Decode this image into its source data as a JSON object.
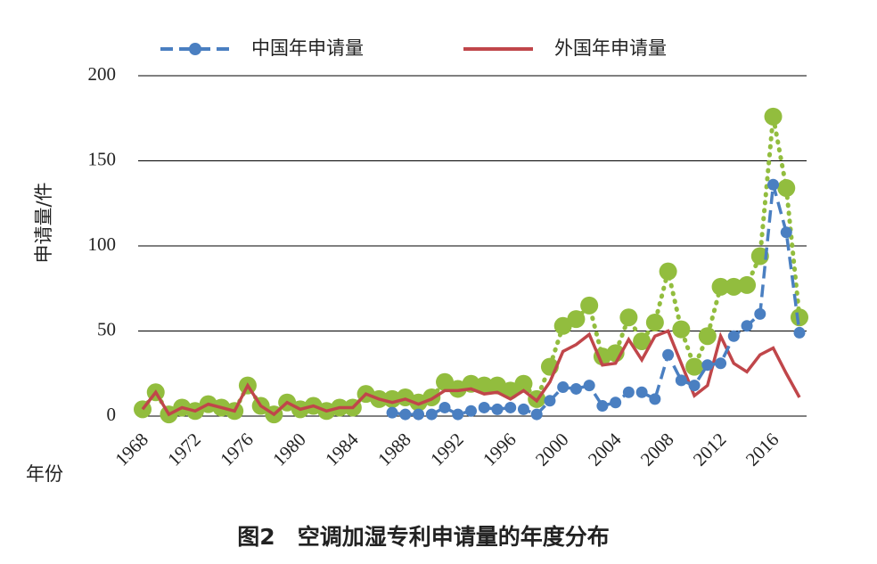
{
  "chart_data": {
    "type": "line",
    "y_label": "申请量/件",
    "x_label": "年份",
    "caption": "图2　空调加湿专利申请量的年度分布",
    "x": [
      1968,
      1969,
      1970,
      1971,
      1972,
      1973,
      1974,
      1975,
      1976,
      1977,
      1978,
      1979,
      1980,
      1981,
      1982,
      1983,
      1984,
      1985,
      1986,
      1987,
      1988,
      1989,
      1990,
      1991,
      1992,
      1993,
      1994,
      1995,
      1996,
      1997,
      1998,
      1999,
      2000,
      2001,
      2002,
      2003,
      2004,
      2005,
      2006,
      2007,
      2008,
      2009,
      2010,
      2011,
      2012,
      2013,
      2014,
      2015,
      2016,
      2017,
      2018
    ],
    "series": [
      {
        "name": "中国年申请量",
        "color": "#4a7fc1",
        "style": "dashed",
        "markers": true,
        "values": [
          null,
          null,
          null,
          null,
          null,
          null,
          null,
          null,
          null,
          null,
          null,
          null,
          null,
          null,
          null,
          null,
          null,
          null,
          null,
          2,
          1,
          1,
          1,
          5,
          1,
          3,
          5,
          4,
          5,
          4,
          1,
          9,
          17,
          16,
          18,
          6,
          8,
          14,
          14,
          10,
          36,
          21,
          18,
          30,
          31,
          47,
          53,
          60,
          136,
          108,
          49
        ]
      },
      {
        "name": "外国年申请量",
        "color": "#c0464a",
        "style": "solid",
        "markers": false,
        "values": [
          4,
          14,
          1,
          5,
          3,
          7,
          5,
          3,
          18,
          6,
          1,
          8,
          4,
          6,
          3,
          5,
          5,
          13,
          10,
          8,
          10,
          7,
          10,
          15,
          15,
          16,
          13,
          14,
          10,
          15,
          9,
          20,
          38,
          42,
          48,
          30,
          31,
          45,
          33,
          47,
          50,
          31,
          12,
          18,
          47,
          31,
          26,
          36,
          40,
          25,
          11
        ]
      },
      {
        "color": "#92bd3e",
        "style": "dotted",
        "markers": true,
        "values": [
          4,
          14,
          1,
          5,
          3,
          7,
          5,
          3,
          18,
          6,
          1,
          8,
          4,
          6,
          3,
          5,
          5,
          13,
          10,
          10,
          11,
          8,
          11,
          20,
          16,
          19,
          18,
          18,
          15,
          19,
          10,
          29,
          53,
          57,
          65,
          35,
          37,
          58,
          44,
          55,
          85,
          51,
          29,
          47,
          76,
          76,
          77,
          94,
          176,
          134,
          58
        ]
      }
    ],
    "xlim": [
      1968,
      2018
    ],
    "xticks": [
      1968,
      1972,
      1976,
      1980,
      1984,
      1988,
      1992,
      1996,
      2000,
      2004,
      2008,
      2012,
      2016
    ],
    "ylim": [
      0,
      200
    ],
    "yticks": [
      0,
      50,
      100,
      150,
      200
    ],
    "grid": true
  }
}
